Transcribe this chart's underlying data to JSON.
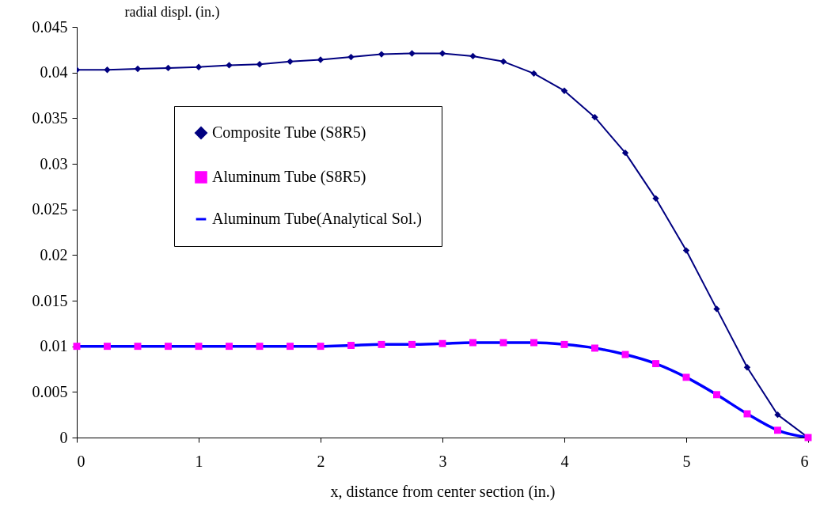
{
  "chart_data": {
    "type": "line",
    "xlabel": "x, distance from center section (in.)",
    "ylabel": "radial displ. (in.)",
    "xlim": [
      0,
      6
    ],
    "xticks": [
      0,
      1,
      2,
      3,
      4,
      5,
      6
    ],
    "ylim": [
      0,
      0.045
    ],
    "yticks": [
      0,
      0.005,
      0.01,
      0.015,
      0.02,
      0.025,
      0.03,
      0.035,
      0.04,
      0.045
    ],
    "grid": false,
    "legend": "top left",
    "series": [
      {
        "name": "Composite Tube (S8R5)",
        "marker": "diamond",
        "color": "#000080",
        "x": [
          0,
          0.25,
          0.5,
          0.75,
          1,
          1.25,
          1.5,
          1.75,
          2,
          2.25,
          2.5,
          2.75,
          3,
          3.25,
          3.5,
          3.75,
          4,
          4.25,
          4.5,
          4.75,
          5,
          5.25,
          5.5,
          5.75,
          6
        ],
        "values": [
          0.0403,
          0.0403,
          0.0404,
          0.0405,
          0.0406,
          0.0408,
          0.0409,
          0.0412,
          0.0414,
          0.0417,
          0.042,
          0.0421,
          0.0421,
          0.0418,
          0.0412,
          0.0399,
          0.038,
          0.0351,
          0.0312,
          0.0262,
          0.0205,
          0.0141,
          0.0077,
          0.0025,
          0
        ]
      },
      {
        "name": "Aluminum Tube (S8R5)",
        "type": "scatter",
        "marker": "square",
        "color": "#ff00ff",
        "x": [
          0,
          0.25,
          0.5,
          0.75,
          1,
          1.25,
          1.5,
          1.75,
          2,
          2.25,
          2.5,
          2.75,
          3,
          3.25,
          3.5,
          3.75,
          4,
          4.25,
          4.5,
          4.75,
          5,
          5.25,
          5.5,
          5.75,
          6
        ],
        "values": [
          0.01,
          0.01,
          0.01,
          0.01,
          0.01,
          0.01,
          0.01,
          0.01,
          0.01,
          0.0101,
          0.0102,
          0.0102,
          0.0103,
          0.0104,
          0.0104,
          0.0104,
          0.0102,
          0.0098,
          0.0091,
          0.0081,
          0.0066,
          0.0047,
          0.0026,
          0.0008,
          0
        ]
      },
      {
        "name": "Aluminum Tube(Analytical Sol.)",
        "marker": "none",
        "color": "#0000ff",
        "x": [
          0,
          0.25,
          0.5,
          0.75,
          1,
          1.25,
          1.5,
          1.75,
          2,
          2.25,
          2.5,
          2.75,
          3,
          3.25,
          3.5,
          3.75,
          4,
          4.25,
          4.5,
          4.75,
          5,
          5.25,
          5.5,
          5.75,
          6
        ],
        "values": [
          0.01,
          0.01,
          0.01,
          0.01,
          0.01,
          0.01,
          0.01,
          0.01,
          0.01,
          0.0101,
          0.0102,
          0.0102,
          0.0103,
          0.0104,
          0.0104,
          0.0104,
          0.0102,
          0.0098,
          0.0091,
          0.0081,
          0.0066,
          0.0047,
          0.0026,
          0.0008,
          0
        ]
      }
    ]
  }
}
